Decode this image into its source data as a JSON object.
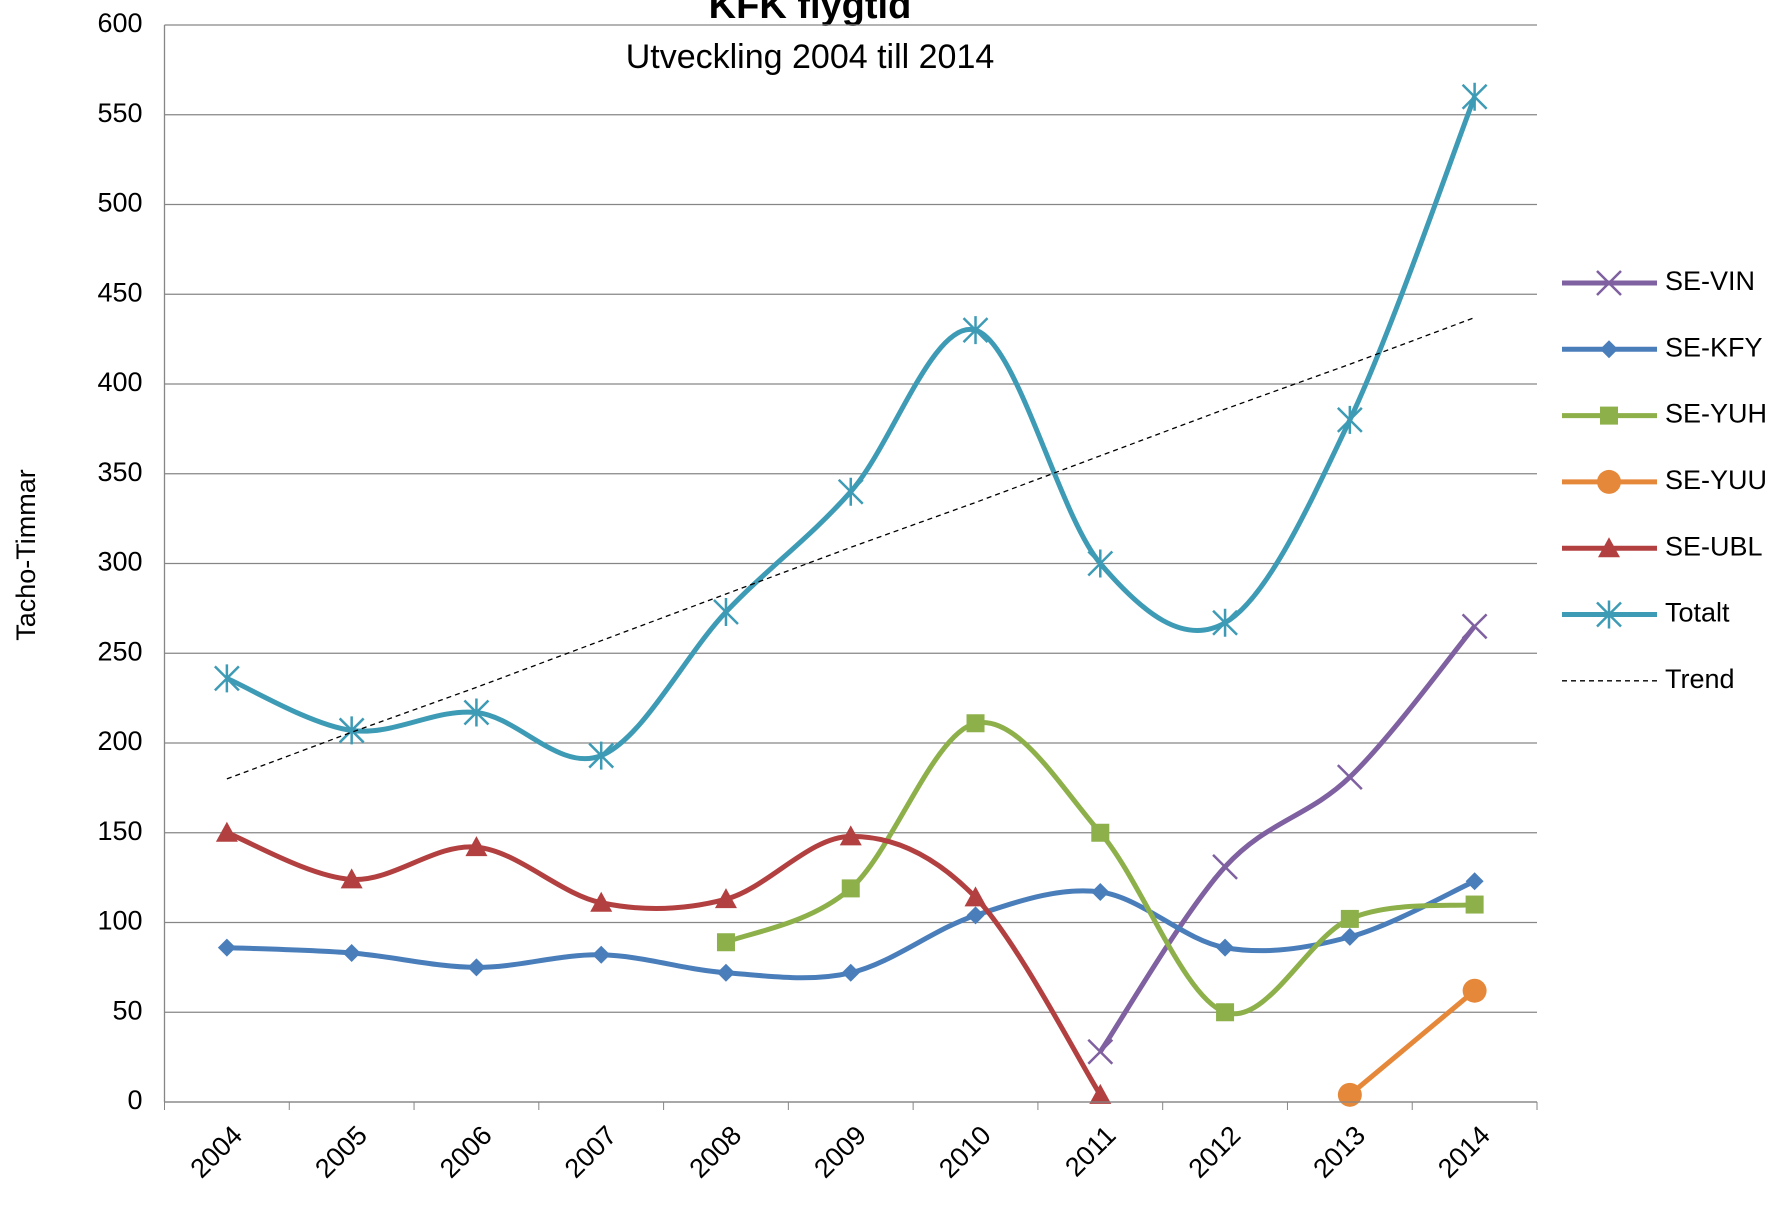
{
  "chart_data": {
    "type": "line",
    "title": "KFK flygtid",
    "subtitle": "Utveckling 2004 till 2014",
    "y_label": "Tacho-Timmar",
    "categories": [
      "2004",
      "2005",
      "2006",
      "2007",
      "2008",
      "2009",
      "2010",
      "2011",
      "2012",
      "2013",
      "2014"
    ],
    "ylim": [
      0,
      600
    ],
    "yticks": [
      0,
      50,
      100,
      150,
      200,
      250,
      300,
      350,
      400,
      450,
      500,
      550,
      600
    ],
    "grid": true,
    "smooth": true,
    "legend": "right",
    "series": [
      {
        "name": "SE-VIN",
        "color": "#7f60a0",
        "marker": "x",
        "values": [
          null,
          null,
          null,
          null,
          null,
          null,
          null,
          28,
          131,
          181,
          265
        ]
      },
      {
        "name": "SE-KFY",
        "color": "#4a7ebb",
        "marker": "diamond",
        "values": [
          86,
          83,
          75,
          82,
          72,
          72,
          104,
          117,
          86,
          92,
          123
        ]
      },
      {
        "name": "SE-YUH",
        "color": "#8db04a",
        "marker": "square",
        "values": [
          null,
          null,
          null,
          null,
          89,
          119,
          211,
          150,
          50,
          102,
          110
        ]
      },
      {
        "name": "SE-YUU",
        "color": "#e6883a",
        "marker": "circle",
        "values": [
          null,
          null,
          null,
          null,
          null,
          null,
          null,
          null,
          null,
          4,
          62
        ]
      },
      {
        "name": "SE-UBL",
        "color": "#b34040",
        "marker": "triangle",
        "values": [
          150,
          124,
          142,
          111,
          113,
          148,
          114,
          4,
          null,
          null,
          null
        ]
      },
      {
        "name": "Totalt",
        "color": "#3e9bb5",
        "marker": "star",
        "values": [
          236,
          207,
          217,
          193,
          273,
          340,
          430,
          300,
          267,
          380,
          560
        ]
      },
      {
        "name": "Trend",
        "color": "#000000",
        "marker": "none",
        "dashed": true,
        "values": [
          180,
          206,
          231,
          257,
          283,
          309,
          334,
          360,
          386,
          411,
          437
        ]
      }
    ]
  }
}
